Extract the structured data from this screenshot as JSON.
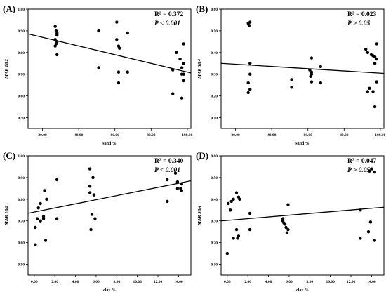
{
  "chart_data": [
    {
      "type": "scatter",
      "panel": "(A)",
      "xlabel": "sand %",
      "ylabel": "MAR 1&2",
      "xlim": [
        12,
        102
      ],
      "ylim": [
        0.45,
        1.0
      ],
      "xticks": [
        20,
        40,
        60,
        80,
        100
      ],
      "xtick_labels": [
        "20.00",
        "40.00",
        "60.00",
        "80.00",
        "100.00"
      ],
      "yticks": [
        0.5,
        0.6,
        0.7,
        0.8,
        0.9,
        1.0
      ],
      "ytick_labels": [
        "0.50",
        "0.60",
        "0.70",
        "0.80",
        "0.90",
        "1.00"
      ],
      "stats": {
        "r2": "R² = 0.372",
        "p": "P < 0.001"
      },
      "fit": {
        "x": [
          12,
          102
        ],
        "y": [
          0.886,
          0.706
        ]
      },
      "points": [
        [
          27,
          0.92
        ],
        [
          27.5,
          0.9
        ],
        [
          28,
          0.89
        ],
        [
          28,
          0.88
        ],
        [
          27,
          0.86
        ],
        [
          28,
          0.85
        ],
        [
          27.5,
          0.84
        ],
        [
          27,
          0.83
        ],
        [
          28,
          0.79
        ],
        [
          51,
          0.9
        ],
        [
          51,
          0.73
        ],
        [
          61,
          0.94
        ],
        [
          61,
          0.86
        ],
        [
          62,
          0.83
        ],
        [
          62.5,
          0.82
        ],
        [
          62,
          0.71
        ],
        [
          62,
          0.66
        ],
        [
          67,
          0.89
        ],
        [
          67,
          0.71
        ],
        [
          92,
          0.72
        ],
        [
          92,
          0.61
        ],
        [
          94,
          0.8
        ],
        [
          96,
          0.77
        ],
        [
          97,
          0.73
        ],
        [
          97,
          0.7
        ],
        [
          98,
          0.84
        ],
        [
          98,
          0.75
        ],
        [
          98,
          0.7
        ],
        [
          98,
          0.67
        ],
        [
          97,
          0.59
        ]
      ]
    },
    {
      "type": "scatter",
      "panel": "(B)",
      "xlabel": "sand %",
      "ylabel": "MAR 3&4",
      "xlim": [
        12,
        102
      ],
      "ylim": [
        0.05,
        0.6
      ],
      "xticks": [
        20,
        40,
        60,
        80,
        100
      ],
      "xtick_labels": [
        "20.00",
        "40.00",
        "60.00",
        "80.00",
        "100.00"
      ],
      "yticks": [
        0.1,
        0.2,
        0.3,
        0.4,
        0.5,
        0.6
      ],
      "ytick_labels": [
        "0.10",
        "0.20",
        "0.30",
        "0.40",
        "0.50",
        "0.60"
      ],
      "stats": {
        "r2": "R² = 0.023",
        "p": "P  > 0.05"
      },
      "fit": {
        "x": [
          12,
          102
        ],
        "y": [
          0.35,
          0.304
        ]
      },
      "points": [
        [
          27,
          0.535
        ],
        [
          27.5,
          0.525
        ],
        [
          28,
          0.54
        ],
        [
          28,
          0.35
        ],
        [
          28,
          0.3
        ],
        [
          27,
          0.26
        ],
        [
          28,
          0.23
        ],
        [
          27,
          0.215
        ],
        [
          51,
          0.275
        ],
        [
          51,
          0.24
        ],
        [
          61,
          0.32
        ],
        [
          62,
          0.31
        ],
        [
          62,
          0.3
        ],
        [
          61.5,
          0.29
        ],
        [
          62,
          0.375
        ],
        [
          62,
          0.265
        ],
        [
          67,
          0.335
        ],
        [
          67,
          0.26
        ],
        [
          92,
          0.415
        ],
        [
          93,
          0.4
        ],
        [
          95,
          0.39
        ],
        [
          96,
          0.385
        ],
        [
          97,
          0.38
        ],
        [
          97,
          0.35
        ],
        [
          98,
          0.44
        ],
        [
          98,
          0.37
        ],
        [
          98,
          0.265
        ],
        [
          94,
          0.235
        ],
        [
          93,
          0.22
        ],
        [
          96,
          0.22
        ],
        [
          97,
          0.15
        ]
      ]
    },
    {
      "type": "scatter",
      "panel": "(C)",
      "xlabel": "clay %",
      "ylabel": "MAR 1&2",
      "xlim": [
        -0.6,
        15.2
      ],
      "ylim": [
        0.45,
        1.0
      ],
      "xticks": [
        0,
        2,
        4,
        6,
        8,
        10,
        12,
        14
      ],
      "xtick_labels": [
        "0.00",
        "2.00",
        "4.00",
        "6.00",
        "8.00",
        "10.00",
        "12.00",
        "14.00"
      ],
      "yticks": [
        0.5,
        0.6,
        0.7,
        0.8,
        0.9,
        1.0
      ],
      "ytick_labels": [
        "0.50",
        "0.60",
        "0.70",
        "0.80",
        "0.90",
        "1.00"
      ],
      "stats": {
        "r2": "R² = 0.340",
        "p": "P < 0.001"
      },
      "fit": {
        "x": [
          -0.6,
          15.2
        ],
        "y": [
          0.735,
          0.885
        ]
      },
      "points": [
        [
          0.1,
          0.59
        ],
        [
          0.1,
          0.67
        ],
        [
          0.3,
          0.71
        ],
        [
          0.4,
          0.76
        ],
        [
          0.6,
          0.78
        ],
        [
          0.6,
          0.7
        ],
        [
          0.9,
          0.71
        ],
        [
          0.9,
          0.72
        ],
        [
          1.0,
          0.84
        ],
        [
          1.1,
          0.61
        ],
        [
          1.2,
          0.8
        ],
        [
          2.2,
          0.89
        ],
        [
          2.2,
          0.71
        ],
        [
          5.4,
          0.94
        ],
        [
          5.4,
          0.86
        ],
        [
          5.4,
          0.83
        ],
        [
          5.5,
          0.66
        ],
        [
          5.6,
          0.73
        ],
        [
          5.7,
          0.9
        ],
        [
          5.8,
          0.82
        ],
        [
          5.9,
          0.71
        ],
        [
          12.9,
          0.89
        ],
        [
          12.9,
          0.79
        ],
        [
          13.7,
          0.92
        ],
        [
          13.9,
          0.88
        ],
        [
          13.9,
          0.85
        ],
        [
          14.2,
          0.85
        ],
        [
          14.3,
          0.84
        ],
        [
          14.3,
          0.87
        ]
      ]
    },
    {
      "type": "scatter",
      "panel": "(D)",
      "xlabel": "clay %",
      "ylabel": "MAR 3&4",
      "xlim": [
        -0.6,
        15.2
      ],
      "ylim": [
        0.05,
        0.6
      ],
      "xticks": [
        0,
        2,
        4,
        6,
        8,
        10,
        12,
        14
      ],
      "xtick_labels": [
        "0.00",
        "2.00",
        "4.00",
        "6.00",
        "8.00",
        "10.00",
        "12.00",
        "14.00"
      ],
      "yticks": [
        0.1,
        0.2,
        0.3,
        0.4,
        0.5,
        0.6
      ],
      "ytick_labels": [
        "0.10",
        "0.20",
        "0.30",
        "0.40",
        "0.50",
        "0.60"
      ],
      "stats": {
        "r2": "R² = 0.047",
        "p": "P > 0.05"
      },
      "fit": {
        "x": [
          -0.6,
          15.2
        ],
        "y": [
          0.3,
          0.363
        ]
      },
      "points": [
        [
          0.0,
          0.15
        ],
        [
          0.1,
          0.38
        ],
        [
          0.3,
          0.35
        ],
        [
          0.4,
          0.39
        ],
        [
          0.6,
          0.22
        ],
        [
          0.6,
          0.4
        ],
        [
          0.9,
          0.26
        ],
        [
          0.9,
          0.43
        ],
        [
          1.0,
          0.22
        ],
        [
          1.1,
          0.23
        ],
        [
          1.1,
          0.41
        ],
        [
          1.2,
          0.4
        ],
        [
          2.2,
          0.335
        ],
        [
          2.2,
          0.26
        ],
        [
          5.4,
          0.31
        ],
        [
          5.4,
          0.3
        ],
        [
          5.5,
          0.29
        ],
        [
          5.6,
          0.285
        ],
        [
          5.7,
          0.27
        ],
        [
          5.8,
          0.245
        ],
        [
          5.9,
          0.375
        ],
        [
          5.9,
          0.26
        ],
        [
          12.9,
          0.22
        ],
        [
          12.9,
          0.35
        ],
        [
          13.7,
          0.25
        ],
        [
          13.9,
          0.295
        ],
        [
          13.8,
          0.53
        ],
        [
          14.0,
          0.54
        ],
        [
          14.3,
          0.525
        ],
        [
          14.3,
          0.21
        ]
      ]
    }
  ]
}
